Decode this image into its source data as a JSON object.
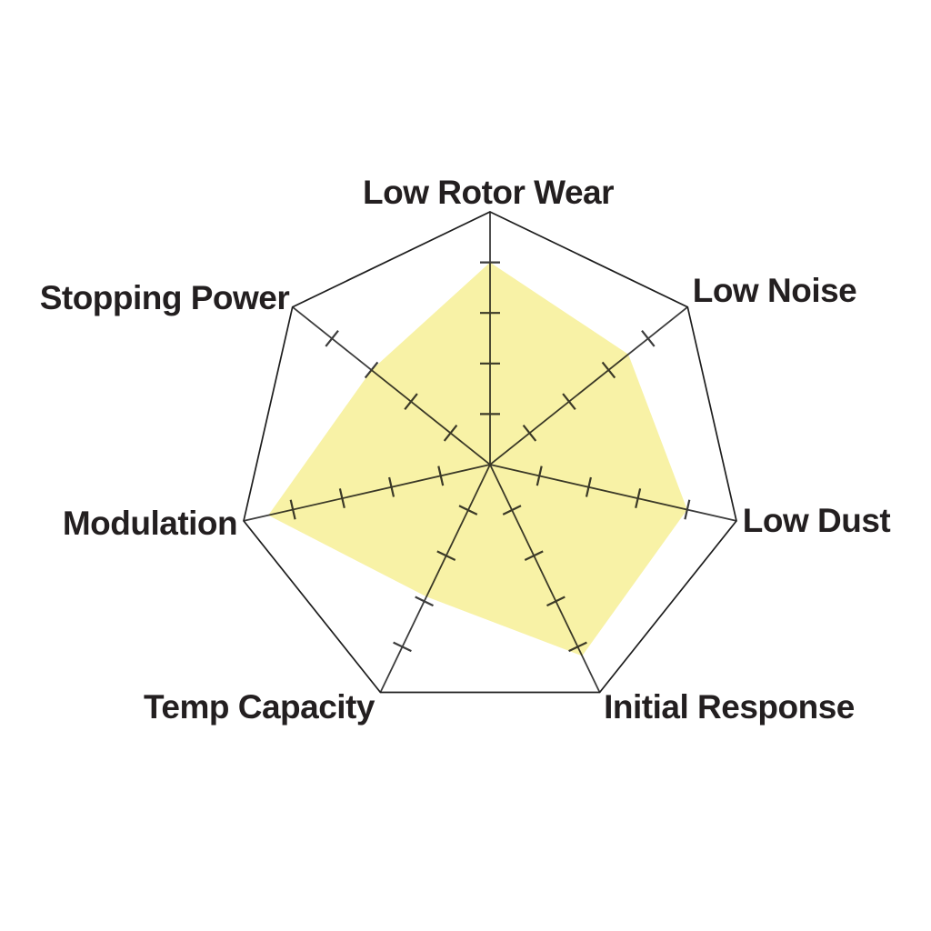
{
  "page": {
    "background_color": "#ffffff",
    "title": ""
  },
  "chart_data": {
    "type": "radar",
    "categories": [
      "Low Rotor Wear",
      "Low Noise",
      "Low Dust",
      "Initial Response",
      "Temp Capacity",
      "Modulation",
      "Stopping Power"
    ],
    "values": [
      8,
      7,
      8,
      8.4,
      5.8,
      9,
      6
    ],
    "axis_range": [
      0,
      10
    ],
    "max": 10,
    "tick_interval": 2,
    "num_axes": 7,
    "grid": "spokes with perpendicular tick marks, single outer heptagon ring, no radial value labels",
    "legend": "none",
    "title": "",
    "colors": {
      "fill": "#F8F2A6",
      "axis": "#3C3C3C",
      "outline": "#1E1E1E",
      "label": "#231F20",
      "background": "#FFFFFF"
    }
  }
}
